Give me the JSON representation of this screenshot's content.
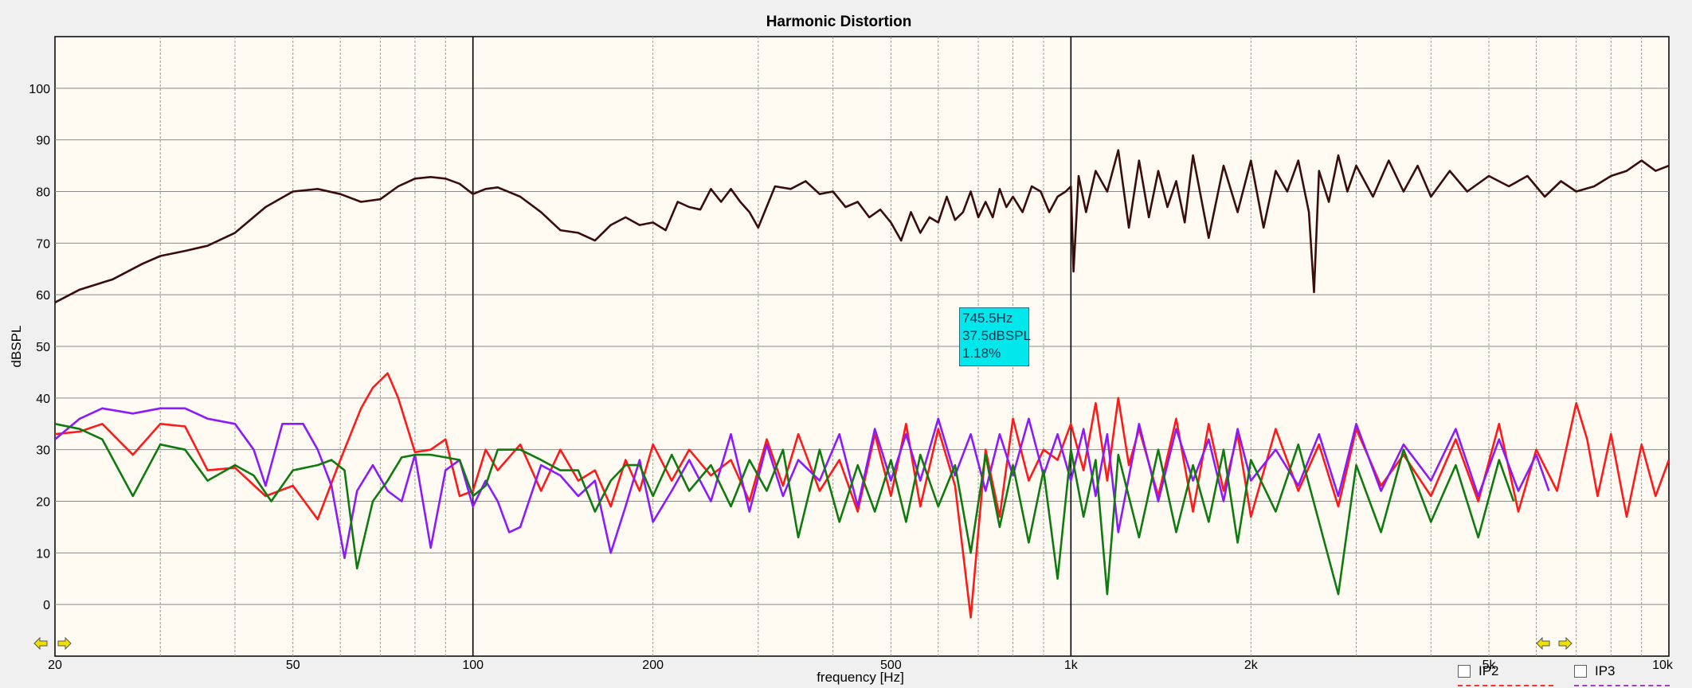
{
  "chart_data": {
    "type": "line",
    "title": "Harmonic Distortion",
    "xlabel": "frequency [Hz]",
    "ylabel": "dBSPL",
    "xscale": "log",
    "xlim": [
      20,
      10000
    ],
    "ylim": [
      -10,
      110
    ],
    "grid": true,
    "x_tick_labels": [
      {
        "value": 20,
        "label": "20"
      },
      {
        "value": 50,
        "label": "50"
      },
      {
        "value": 100,
        "label": "100"
      },
      {
        "value": 200,
        "label": "200"
      },
      {
        "value": 500,
        "label": "500"
      },
      {
        "value": 1000,
        "label": "1k"
      },
      {
        "value": 2000,
        "label": "2k"
      },
      {
        "value": 5000,
        "label": "5k"
      },
      {
        "value": 10000,
        "label": "10k"
      }
    ],
    "y_ticks": [
      0,
      10,
      20,
      30,
      40,
      50,
      60,
      70,
      80,
      90,
      100
    ],
    "series": [
      {
        "color": "#3a0d0d",
        "x": [
          20,
          22,
          25,
          28,
          30,
          33,
          36,
          40,
          45,
          50,
          55,
          60,
          65,
          70,
          75,
          80,
          85,
          90,
          95,
          100,
          105,
          110,
          120,
          130,
          140,
          150,
          160,
          170,
          180,
          190,
          200,
          210,
          220,
          230,
          240,
          250,
          260,
          270,
          280,
          290,
          300,
          320,
          340,
          360,
          380,
          400,
          420,
          440,
          460,
          480,
          500,
          520,
          540,
          560,
          580,
          600,
          620,
          640,
          660,
          680,
          700,
          720,
          740,
          760,
          780,
          800,
          830,
          860,
          890,
          920,
          950,
          980,
          1000,
          1010,
          1030,
          1060,
          1100,
          1150,
          1200,
          1250,
          1300,
          1350,
          1400,
          1450,
          1500,
          1550,
          1600,
          1700,
          1800,
          1900,
          2000,
          2100,
          2200,
          2300,
          2400,
          2500,
          2550,
          2600,
          2700,
          2800,
          2900,
          3000,
          3200,
          3400,
          3600,
          3800,
          4000,
          4300,
          4600,
          5000,
          5400,
          5800,
          6200,
          6600,
          7000,
          7500,
          8000,
          8500,
          9000,
          9500,
          10000
        ],
        "y": [
          58.5,
          61,
          63,
          66,
          67.5,
          68.5,
          69.5,
          72,
          77,
          80,
          80.5,
          79.5,
          78,
          78.5,
          81,
          82.5,
          82.8,
          82.5,
          81.5,
          79.5,
          80.5,
          80.8,
          79,
          76,
          72.5,
          72,
          70.5,
          73.5,
          75,
          73.5,
          74,
          72.5,
          78,
          77,
          76.5,
          80.5,
          78,
          80.5,
          78,
          76,
          73,
          81,
          80.5,
          82,
          79.5,
          80,
          77,
          78,
          75,
          76.5,
          74,
          70.5,
          76,
          72,
          75,
          74,
          79,
          74.5,
          76,
          80,
          75,
          78,
          75,
          80.5,
          77,
          79,
          76,
          81,
          80,
          76,
          79,
          80,
          81,
          64.5,
          83,
          76,
          84,
          80,
          88,
          73,
          86,
          75,
          84,
          77,
          82,
          74,
          87,
          71,
          85,
          76,
          86,
          73,
          84,
          80,
          86,
          76,
          60.5,
          84,
          78,
          87,
          80,
          85,
          79,
          86,
          80,
          85,
          79,
          84,
          80,
          83,
          81,
          83,
          79,
          82,
          80,
          81,
          83,
          84,
          86,
          84,
          85
        ]
      },
      {
        "color": "#ff1a1a",
        "x": [
          20,
          22,
          24,
          27,
          30,
          33,
          36,
          40,
          45,
          50,
          55,
          60,
          65,
          68,
          72,
          75,
          80,
          85,
          90,
          95,
          100,
          105,
          110,
          120,
          130,
          140,
          150,
          160,
          170,
          180,
          190,
          200,
          215,
          230,
          250,
          270,
          290,
          310,
          330,
          350,
          380,
          410,
          440,
          470,
          500,
          530,
          560,
          600,
          640,
          680,
          720,
          760,
          800,
          850,
          900,
          950,
          1000,
          1050,
          1100,
          1150,
          1200,
          1250,
          1300,
          1400,
          1500,
          1600,
          1700,
          1800,
          1900,
          2000,
          2200,
          2400,
          2600,
          2800,
          3000,
          3300,
          3600,
          4000,
          4400,
          4800,
          5200,
          5600,
          6000,
          6500,
          7000,
          7300,
          7600,
          8000,
          8500,
          9000,
          9500,
          10000
        ],
        "y": [
          33,
          33.5,
          35,
          29,
          35,
          34.5,
          26,
          26.5,
          21,
          23,
          16.5,
          28,
          38,
          42,
          44.8,
          40,
          29.5,
          30,
          32,
          21,
          22,
          30,
          26,
          31,
          22,
          30,
          24,
          26,
          19,
          28,
          22,
          31,
          24,
          30,
          25,
          28,
          20,
          32,
          23,
          33,
          22,
          28,
          18,
          33,
          21,
          35,
          19,
          34,
          23,
          -2.5,
          30,
          17,
          36,
          24,
          30,
          28,
          35,
          26,
          39,
          24,
          40,
          27,
          34,
          21,
          36,
          18,
          35,
          22,
          33,
          17,
          34,
          22,
          31,
          19,
          34,
          23,
          29,
          21,
          32,
          20,
          35,
          18,
          30,
          22,
          39,
          32,
          21,
          33,
          17,
          31,
          21,
          28
        ]
      },
      {
        "color": "#8c1aff",
        "x": [
          20,
          22,
          24,
          27,
          30,
          33,
          36,
          40,
          43,
          45,
          48,
          52,
          55,
          58,
          61,
          64,
          68,
          72,
          76,
          80,
          85,
          90,
          95,
          100,
          105,
          110,
          115,
          120,
          130,
          140,
          150,
          160,
          170,
          180,
          190,
          200,
          215,
          230,
          250,
          270,
          290,
          310,
          330,
          350,
          380,
          410,
          440,
          470,
          500,
          530,
          560,
          600,
          640,
          680,
          720,
          760,
          800,
          850,
          900,
          950,
          1000,
          1050,
          1100,
          1150,
          1200,
          1300,
          1400,
          1500,
          1600,
          1700,
          1800,
          1900,
          2000,
          2200,
          2400,
          2600,
          2800,
          3000,
          3300,
          3600,
          4000,
          4400,
          4800,
          5200,
          5600,
          6000,
          6300
        ],
        "y": [
          32,
          36,
          38,
          37,
          38,
          38,
          36,
          35,
          30,
          23,
          35,
          35,
          30,
          23,
          9,
          22,
          27,
          22,
          20,
          29,
          11,
          26,
          28,
          19,
          24,
          20,
          14,
          15,
          27,
          25,
          21,
          24,
          10,
          19,
          28,
          16,
          22,
          28,
          20,
          33,
          18,
          31,
          21,
          28,
          24,
          33,
          19,
          34,
          24,
          33,
          24,
          36,
          25,
          33,
          22,
          33,
          25,
          36,
          25,
          33,
          24,
          34,
          21,
          33,
          14,
          35,
          20,
          34,
          24,
          32,
          20,
          34,
          24,
          30,
          23,
          33,
          21,
          35,
          22,
          31,
          24,
          34,
          21,
          32,
          22,
          29,
          22
        ]
      },
      {
        "color": "#0f7a0f",
        "x": [
          20,
          22,
          24,
          27,
          30,
          33,
          36,
          40,
          43,
          46,
          50,
          55,
          58,
          61,
          64,
          68,
          72,
          76,
          80,
          85,
          90,
          95,
          100,
          105,
          110,
          120,
          130,
          140,
          150,
          160,
          170,
          180,
          190,
          200,
          215,
          230,
          250,
          270,
          290,
          310,
          330,
          350,
          380,
          410,
          440,
          470,
          500,
          530,
          560,
          600,
          640,
          680,
          720,
          760,
          800,
          850,
          900,
          950,
          1000,
          1050,
          1100,
          1150,
          1200,
          1300,
          1400,
          1500,
          1600,
          1700,
          1800,
          1900,
          2000,
          2200,
          2400,
          2600,
          2800,
          3000,
          3300,
          3600,
          4000,
          4400,
          4800,
          5200,
          5500
        ],
        "y": [
          35,
          34,
          32,
          21,
          31,
          30,
          24,
          27,
          25,
          20,
          26,
          27,
          28,
          26,
          7,
          20,
          24,
          28.5,
          29,
          29,
          28.5,
          28,
          21,
          23,
          30,
          30,
          28,
          26,
          26,
          18,
          24,
          27,
          27,
          21,
          29,
          22,
          27,
          19,
          28,
          22,
          30,
          13,
          30,
          16,
          27,
          18,
          28,
          16,
          29,
          19,
          27,
          10,
          29,
          15,
          27,
          12,
          26,
          5,
          30,
          17,
          28,
          2,
          29,
          13,
          30,
          14,
          27,
          16,
          30,
          12,
          28,
          18,
          31,
          16,
          2,
          27,
          14,
          30,
          16,
          27,
          13,
          28,
          20
        ]
      }
    ],
    "tooltip": {
      "freq": "745.5Hz",
      "level": "37.5dBSPL",
      "percent": "1.18%"
    },
    "legend": [
      {
        "label": "IP2",
        "color": "#ff3030"
      },
      {
        "label": "IP3",
        "color": "#a040c0"
      }
    ]
  },
  "icons": [
    "arrow-left-icon",
    "arrow-right-icon"
  ]
}
